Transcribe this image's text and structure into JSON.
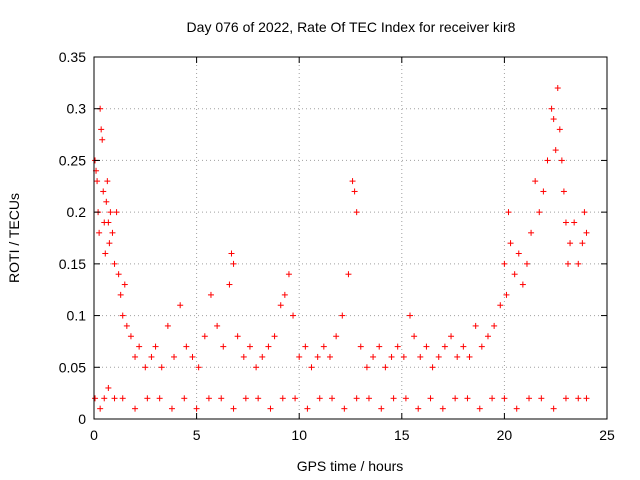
{
  "chart_data": {
    "type": "scatter",
    "title": "Day 076 of 2022, Rate Of TEC Index for receiver kir8",
    "xlabel": "GPS time / hours",
    "ylabel": "ROTI / TECUs",
    "xlim": [
      0,
      25
    ],
    "ylim": [
      0,
      0.35
    ],
    "x_ticks": [
      0,
      5,
      10,
      15,
      20,
      25
    ],
    "y_ticks": [
      0,
      0.05,
      0.1,
      0.15,
      0.2,
      0.25,
      0.3,
      0.35
    ],
    "x_tick_labels": [
      "0",
      "5",
      "10",
      "15",
      "20",
      "25"
    ],
    "y_tick_labels": [
      "0",
      "0.05",
      "0.1",
      "0.15",
      "0.2",
      "0.25",
      "0.3",
      "0.35"
    ],
    "grid": true,
    "marker": "+",
    "series": [
      {
        "name": "ROTI",
        "color": "#ff0000",
        "x": [
          0.05,
          0.1,
          0.15,
          0.2,
          0.25,
          0.3,
          0.35,
          0.4,
          0.45,
          0.5,
          0.55,
          0.6,
          0.65,
          0.7,
          0.75,
          0.8,
          0.9,
          1.0,
          1.1,
          1.2,
          1.3,
          1.4,
          1.5,
          1.6,
          1.8,
          2.0,
          2.2,
          2.5,
          2.8,
          3.0,
          3.3,
          3.6,
          3.9,
          4.2,
          4.5,
          4.8,
          5.1,
          5.4,
          5.7,
          6.0,
          6.3,
          6.6,
          6.7,
          6.8,
          7.0,
          7.3,
          7.6,
          7.9,
          8.2,
          8.5,
          8.8,
          9.1,
          9.3,
          9.5,
          9.7,
          10.0,
          10.3,
          10.6,
          10.9,
          11.2,
          11.5,
          11.8,
          12.1,
          12.4,
          12.6,
          12.7,
          12.8,
          13.0,
          13.3,
          13.6,
          13.9,
          14.2,
          14.5,
          14.8,
          15.1,
          15.4,
          15.6,
          15.9,
          16.2,
          16.5,
          16.8,
          17.1,
          17.4,
          17.7,
          18.0,
          18.3,
          18.6,
          18.9,
          19.2,
          19.5,
          19.8,
          20.0,
          20.1,
          20.2,
          20.3,
          20.5,
          20.7,
          20.9,
          21.1,
          21.3,
          21.5,
          21.7,
          21.9,
          22.1,
          22.3,
          22.4,
          22.5,
          22.6,
          22.7,
          22.8,
          22.9,
          23.0,
          23.1,
          23.2,
          23.4,
          23.6,
          23.8,
          23.9,
          24.0,
          0.05,
          0.3,
          0.5,
          0.7,
          1.0,
          1.4,
          2.0,
          2.6,
          3.2,
          3.8,
          4.4,
          5.0,
          5.6,
          6.2,
          6.8,
          7.4,
          8.0,
          8.6,
          9.2,
          9.8,
          10.4,
          11.0,
          11.6,
          12.2,
          12.8,
          13.4,
          14.0,
          14.6,
          15.2,
          15.8,
          16.4,
          17.0,
          17.6,
          18.2,
          18.8,
          19.4,
          20.0,
          20.6,
          21.2,
          21.8,
          22.4,
          23.0,
          23.6,
          24.0
        ],
        "y": [
          0.25,
          0.24,
          0.23,
          0.2,
          0.18,
          0.3,
          0.28,
          0.27,
          0.22,
          0.19,
          0.16,
          0.21,
          0.23,
          0.19,
          0.17,
          0.2,
          0.18,
          0.15,
          0.2,
          0.14,
          0.12,
          0.1,
          0.13,
          0.09,
          0.08,
          0.06,
          0.07,
          0.05,
          0.06,
          0.07,
          0.05,
          0.09,
          0.06,
          0.11,
          0.07,
          0.06,
          0.05,
          0.08,
          0.12,
          0.09,
          0.07,
          0.13,
          0.16,
          0.15,
          0.08,
          0.06,
          0.07,
          0.05,
          0.06,
          0.07,
          0.08,
          0.11,
          0.12,
          0.14,
          0.1,
          0.06,
          0.07,
          0.05,
          0.06,
          0.07,
          0.06,
          0.08,
          0.1,
          0.14,
          0.23,
          0.22,
          0.2,
          0.07,
          0.05,
          0.06,
          0.07,
          0.05,
          0.06,
          0.07,
          0.06,
          0.1,
          0.08,
          0.06,
          0.07,
          0.05,
          0.06,
          0.07,
          0.08,
          0.06,
          0.07,
          0.06,
          0.09,
          0.07,
          0.08,
          0.09,
          0.11,
          0.15,
          0.12,
          0.2,
          0.17,
          0.14,
          0.16,
          0.13,
          0.15,
          0.18,
          0.23,
          0.2,
          0.22,
          0.25,
          0.3,
          0.29,
          0.26,
          0.32,
          0.28,
          0.25,
          0.22,
          0.19,
          0.15,
          0.17,
          0.19,
          0.15,
          0.17,
          0.2,
          0.18,
          0.02,
          0.01,
          0.02,
          0.03,
          0.02,
          0.02,
          0.01,
          0.02,
          0.02,
          0.01,
          0.02,
          0.01,
          0.02,
          0.02,
          0.01,
          0.02,
          0.02,
          0.01,
          0.02,
          0.02,
          0.01,
          0.02,
          0.02,
          0.01,
          0.02,
          0.02,
          0.01,
          0.02,
          0.02,
          0.01,
          0.02,
          0.01,
          0.02,
          0.02,
          0.01,
          0.02,
          0.02,
          0.01,
          0.02,
          0.02,
          0.01,
          0.02,
          0.02,
          0.02
        ]
      }
    ]
  }
}
